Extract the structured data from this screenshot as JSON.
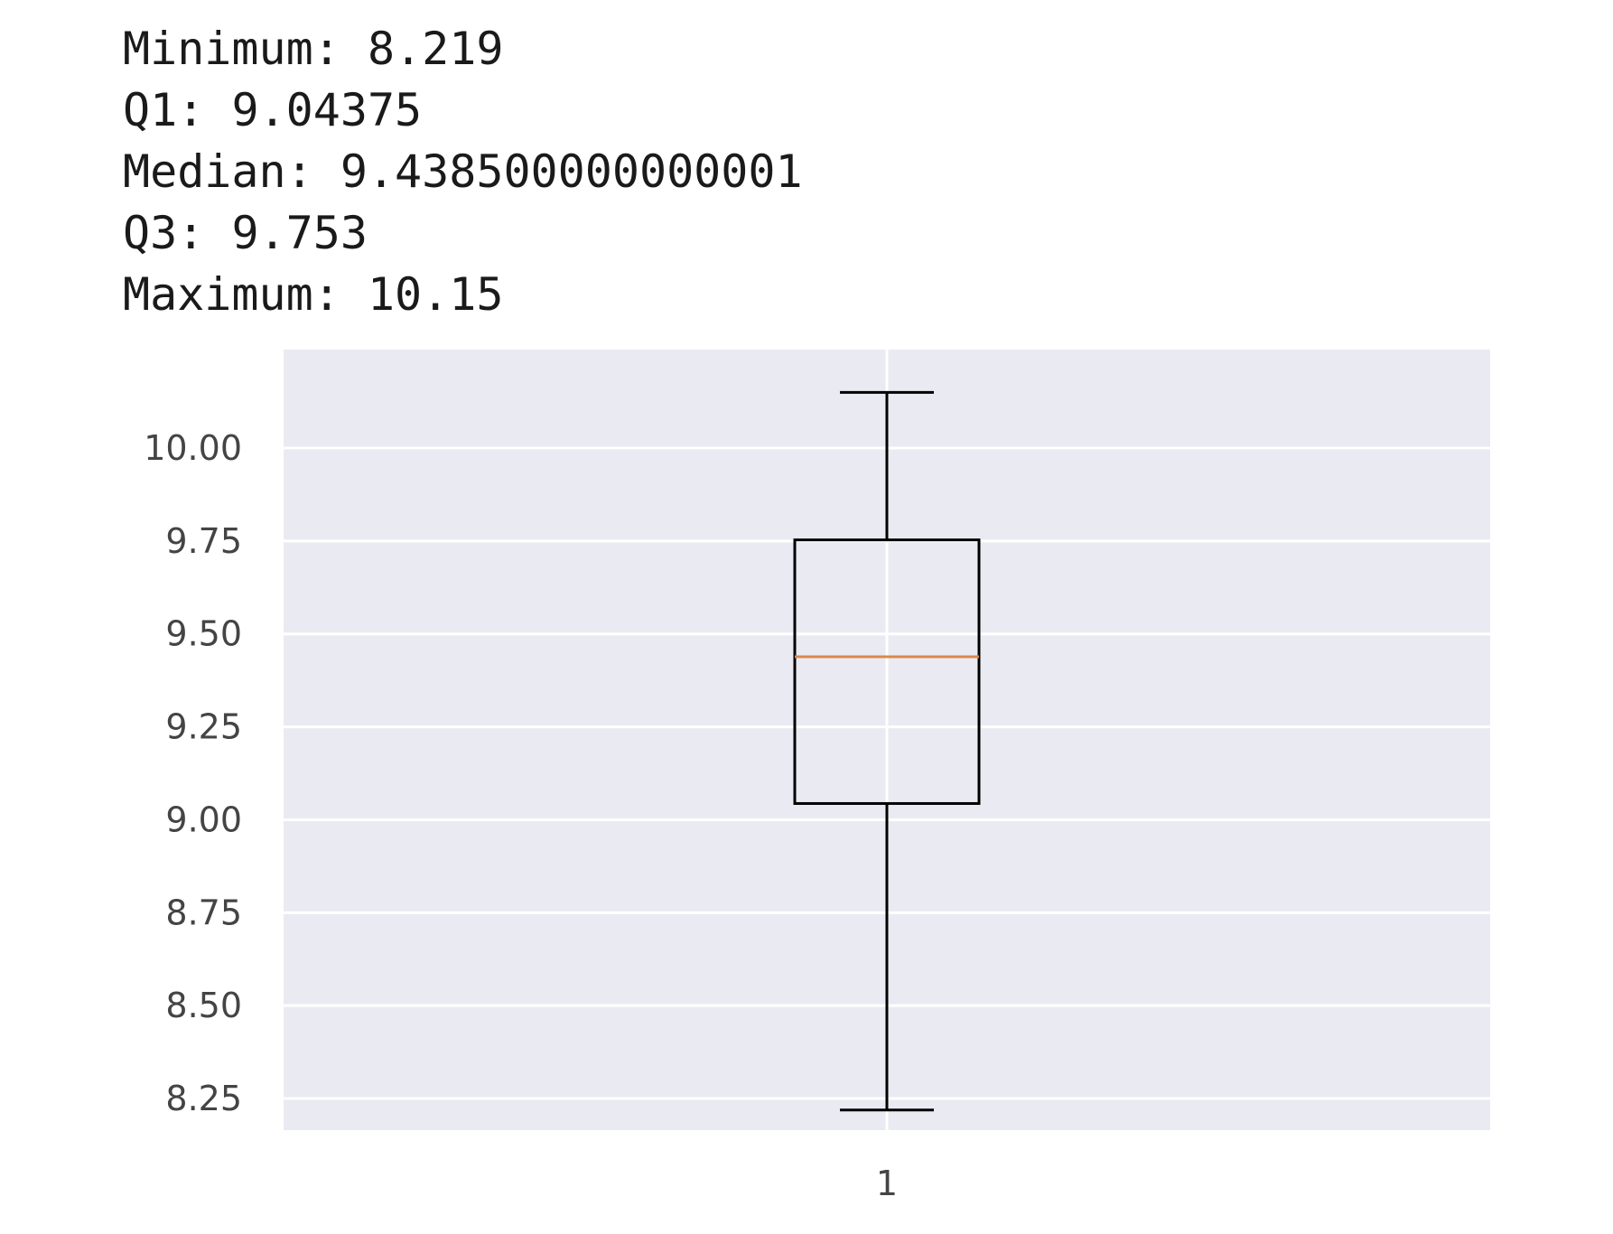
{
  "stats": [
    {
      "label": "Minimum",
      "value": "8.219"
    },
    {
      "label": "Q1",
      "value": "9.04375"
    },
    {
      "label": "Median",
      "value": "9.438500000000001"
    },
    {
      "label": "Q3",
      "value": "9.753"
    },
    {
      "label": "Maximum",
      "value": "10.15"
    }
  ],
  "chart_data": {
    "type": "box",
    "categories": [
      "1"
    ],
    "series": [
      {
        "min": 8.219,
        "q1": 9.04375,
        "median": 9.438500000000001,
        "q3": 9.753,
        "max": 10.15
      }
    ],
    "ylim": [
      8.165,
      10.265
    ],
    "yticks": [
      8.25,
      8.5,
      8.75,
      9.0,
      9.25,
      9.5,
      9.75,
      10.0
    ],
    "ytick_labels": [
      "8.25",
      "8.50",
      "8.75",
      "9.00",
      "9.25",
      "9.50",
      "9.75",
      "10.00"
    ],
    "xtick_labels": [
      "1"
    ],
    "grid": true,
    "colors": {
      "background": "#EAEAF2",
      "grid": "#FFFFFF",
      "box": "#000000",
      "median": "#D9884E"
    }
  }
}
